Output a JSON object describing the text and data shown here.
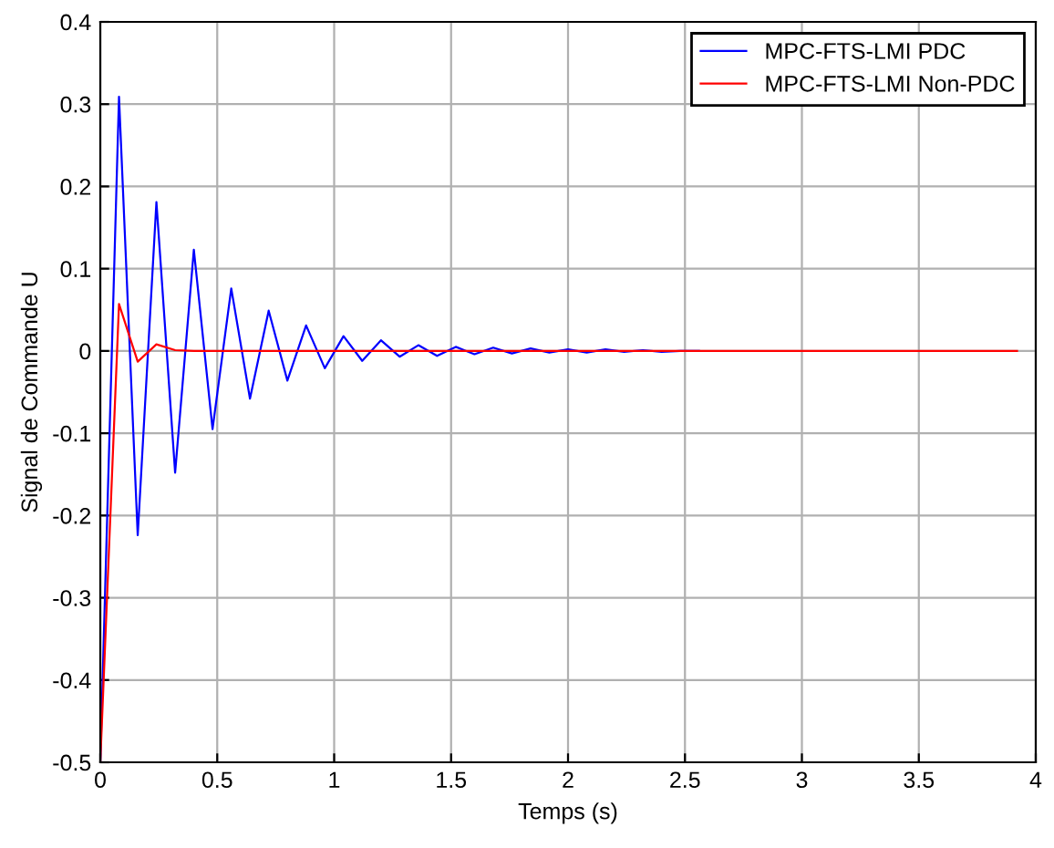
{
  "chart_data": {
    "type": "line",
    "xlabel": "Temps (s)",
    "ylabel": "Signal de Commande U",
    "x": [
      0,
      0.08,
      0.16,
      0.24,
      0.32,
      0.4,
      0.48,
      0.56,
      0.64,
      0.72,
      0.8,
      0.88,
      0.96,
      1.04,
      1.12,
      1.2,
      1.28,
      1.36,
      1.44,
      1.52,
      1.6,
      1.68,
      1.76,
      1.84,
      1.92,
      2.0,
      2.08,
      2.16,
      2.24,
      2.32,
      2.4,
      2.48,
      2.56,
      2.64,
      2.72,
      2.8,
      2.88,
      2.96,
      3.04,
      3.12,
      3.2,
      3.28,
      3.36,
      3.44,
      3.52,
      3.6,
      3.68,
      3.76,
      3.84,
      3.92
    ],
    "series": [
      {
        "name": "MPC-FTS-LMI PDC",
        "color": "#0000ff",
        "values": [
          -0.5,
          0.309,
          -0.224,
          0.181,
          -0.148,
          0.123,
          -0.095,
          0.076,
          -0.058,
          0.049,
          -0.036,
          0.031,
          -0.021,
          0.018,
          -0.012,
          0.013,
          -0.007,
          0.007,
          -0.006,
          0.005,
          -0.004,
          0.004,
          -0.003,
          0.003,
          -0.002,
          0.002,
          -0.002,
          0.002,
          -0.001,
          0.001,
          -0.001,
          0,
          0,
          null,
          null,
          null,
          null,
          null,
          null,
          null,
          null,
          null,
          null,
          null,
          null,
          null,
          null,
          null,
          null,
          null
        ]
      },
      {
        "name": "MPC-FTS-LMI Non-PDC",
        "color": "#ff0000",
        "values": [
          -0.5,
          0.057,
          -0.013,
          0.008,
          0.001,
          0,
          0,
          0,
          0,
          0,
          0,
          0,
          0,
          0,
          0,
          0,
          0,
          0,
          0,
          0,
          0,
          0,
          0,
          0,
          0,
          0,
          0,
          0,
          0,
          0,
          0,
          0,
          0,
          0,
          0,
          0,
          0,
          0,
          0,
          0,
          0,
          0,
          0,
          0,
          0,
          0,
          0,
          0,
          0,
          0
        ]
      }
    ],
    "xlim": [
      0,
      4
    ],
    "xticks": [
      0,
      0.5,
      1,
      1.5,
      2,
      2.5,
      3,
      3.5,
      4
    ],
    "ylim": [
      -0.5,
      0.4
    ],
    "yticks": [
      -0.5,
      -0.4,
      -0.3,
      -0.2,
      -0.1,
      0,
      0.1,
      0.2,
      0.3,
      0.4
    ],
    "grid": true,
    "legend": "top right"
  }
}
